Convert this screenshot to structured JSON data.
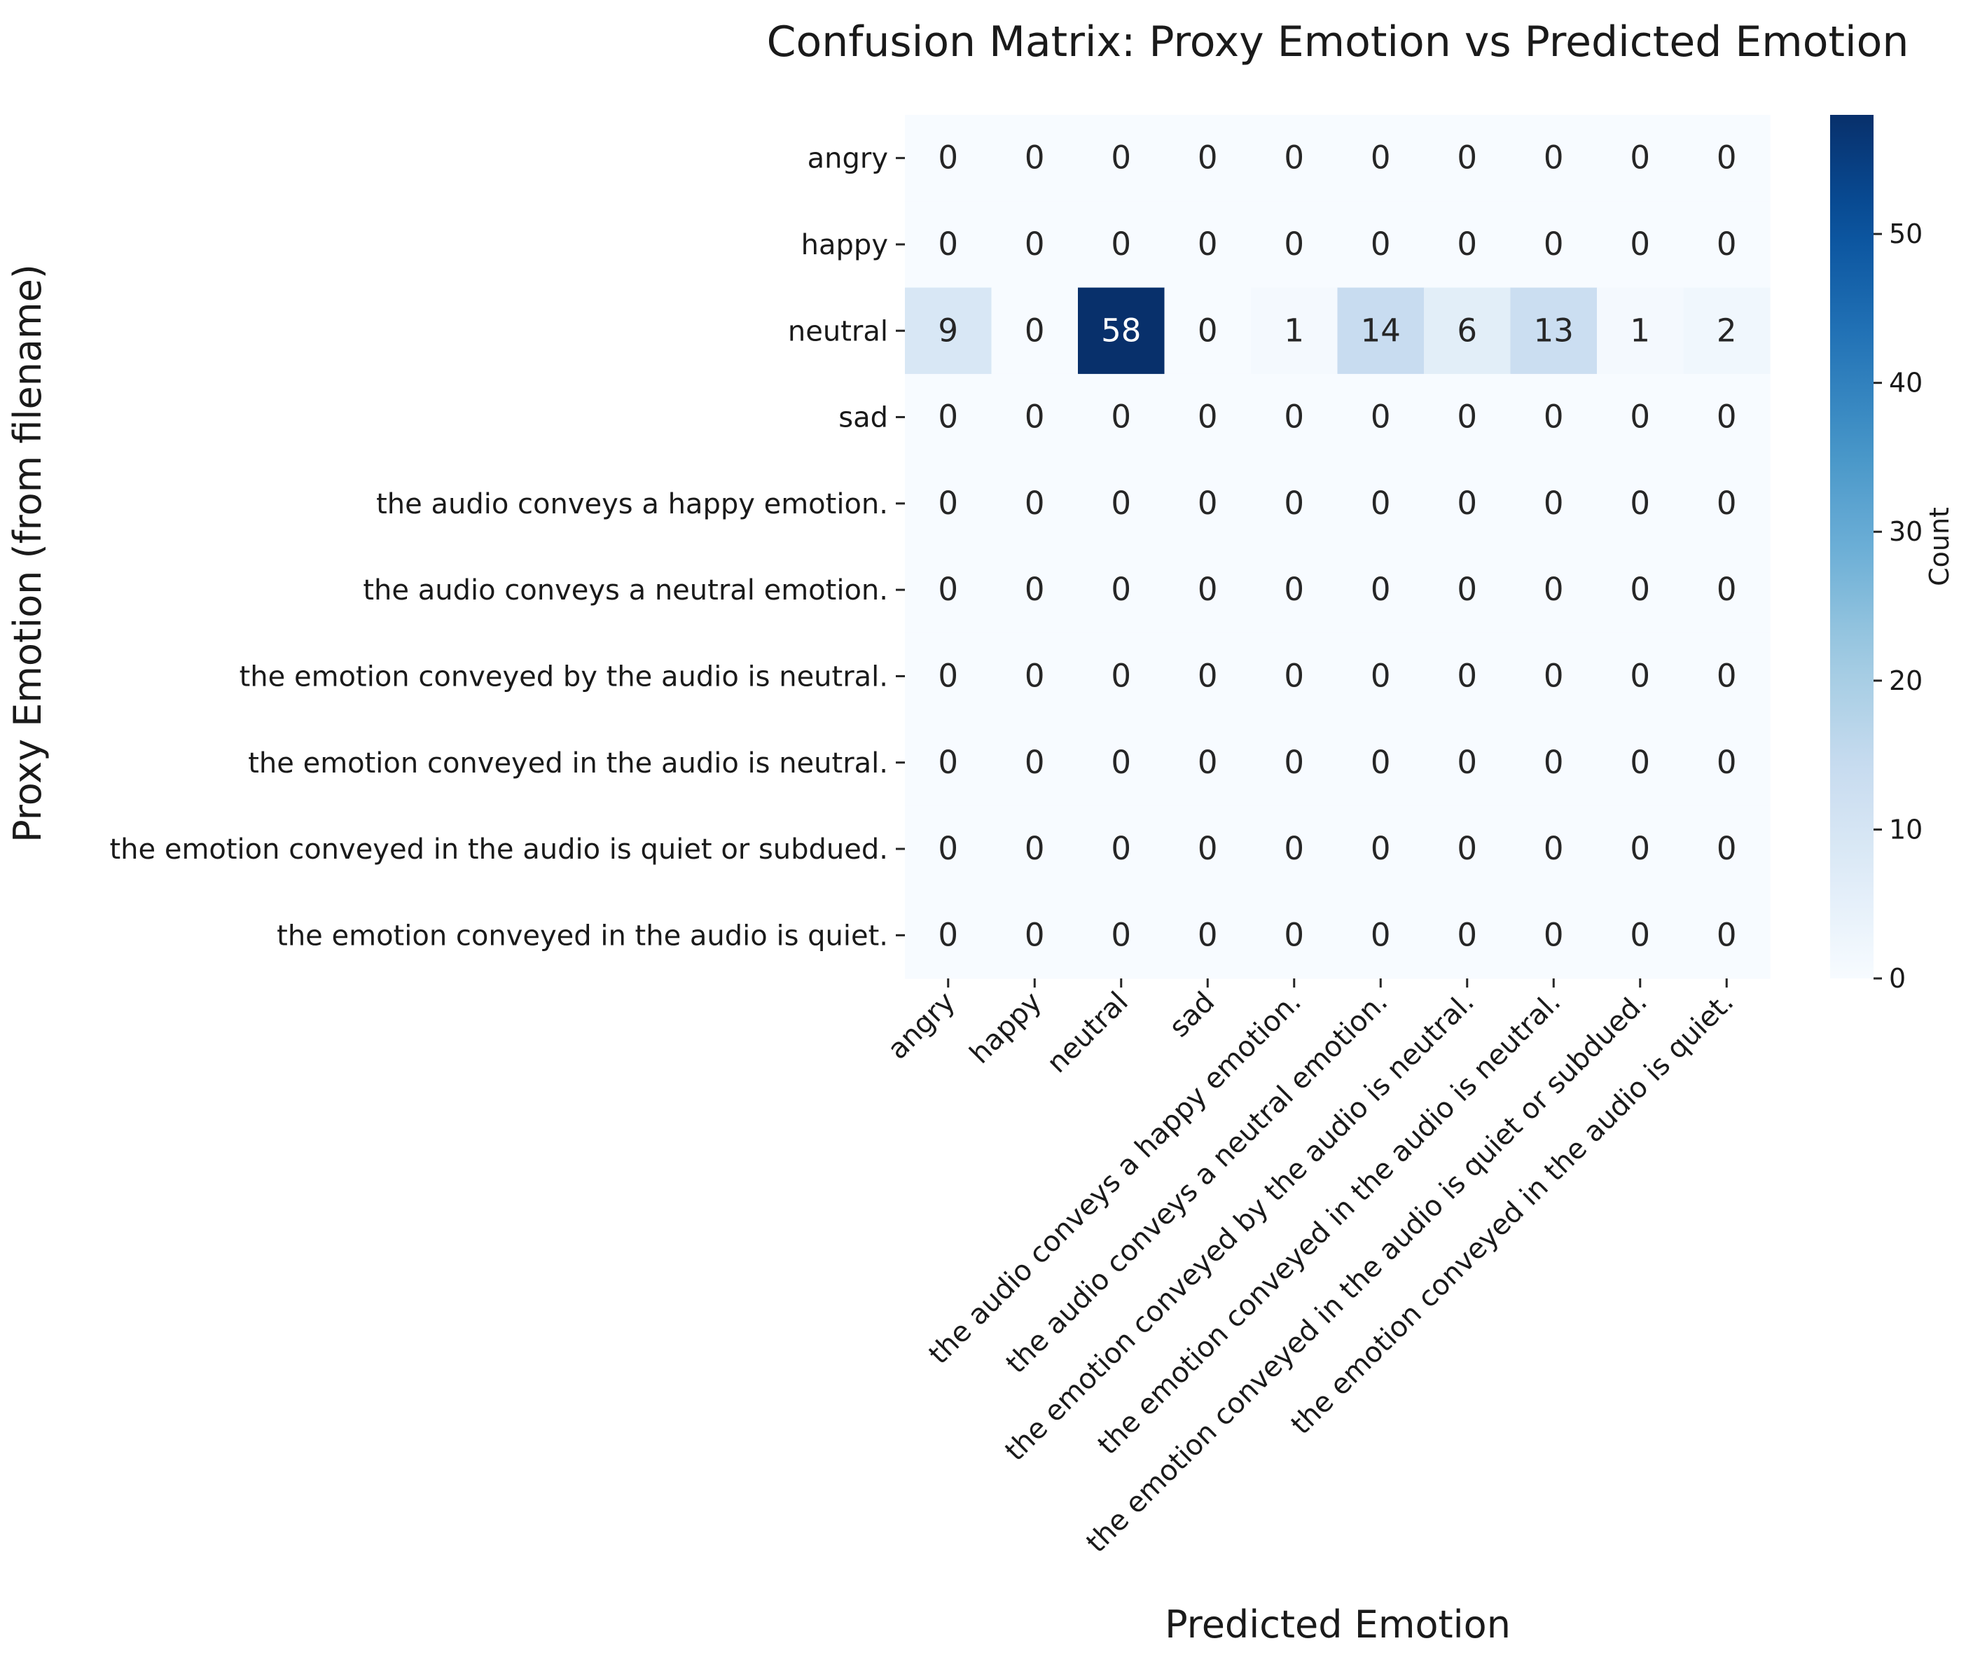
{
  "chart_data": {
    "type": "heatmap",
    "title": "Confusion Matrix: Proxy Emotion vs Predicted Emotion",
    "xlabel": "Predicted Emotion",
    "ylabel": "Proxy Emotion (from filename)",
    "row_labels": [
      "angry",
      "happy",
      "neutral",
      "sad",
      "the audio conveys a happy emotion.",
      "the audio conveys a neutral emotion.",
      "the emotion conveyed by the audio is neutral.",
      "the emotion conveyed in the audio is neutral.",
      "the emotion conveyed in the audio is quiet or subdued.",
      "the emotion conveyed in the audio is quiet."
    ],
    "col_labels": [
      "angry",
      "happy",
      "neutral",
      "sad",
      "the audio conveys a happy emotion.",
      "the audio conveys a neutral emotion.",
      "the emotion conveyed by the audio is neutral.",
      "the emotion conveyed in the audio is neutral.",
      "the emotion conveyed in the audio is quiet or subdued.",
      "the emotion conveyed in the audio is quiet."
    ],
    "values": [
      [
        0,
        0,
        0,
        0,
        0,
        0,
        0,
        0,
        0,
        0
      ],
      [
        0,
        0,
        0,
        0,
        0,
        0,
        0,
        0,
        0,
        0
      ],
      [
        9,
        0,
        58,
        0,
        1,
        14,
        6,
        13,
        1,
        2
      ],
      [
        0,
        0,
        0,
        0,
        0,
        0,
        0,
        0,
        0,
        0
      ],
      [
        0,
        0,
        0,
        0,
        0,
        0,
        0,
        0,
        0,
        0
      ],
      [
        0,
        0,
        0,
        0,
        0,
        0,
        0,
        0,
        0,
        0
      ],
      [
        0,
        0,
        0,
        0,
        0,
        0,
        0,
        0,
        0,
        0
      ],
      [
        0,
        0,
        0,
        0,
        0,
        0,
        0,
        0,
        0,
        0
      ],
      [
        0,
        0,
        0,
        0,
        0,
        0,
        0,
        0,
        0,
        0
      ],
      [
        0,
        0,
        0,
        0,
        0,
        0,
        0,
        0,
        0,
        0
      ]
    ],
    "colormap": "Blues",
    "colormap_range": [
      0,
      58
    ],
    "colorbar": {
      "label": "Count",
      "ticks": [
        0,
        10,
        20,
        30,
        40,
        50
      ]
    },
    "annotations": true,
    "grid": false
  }
}
